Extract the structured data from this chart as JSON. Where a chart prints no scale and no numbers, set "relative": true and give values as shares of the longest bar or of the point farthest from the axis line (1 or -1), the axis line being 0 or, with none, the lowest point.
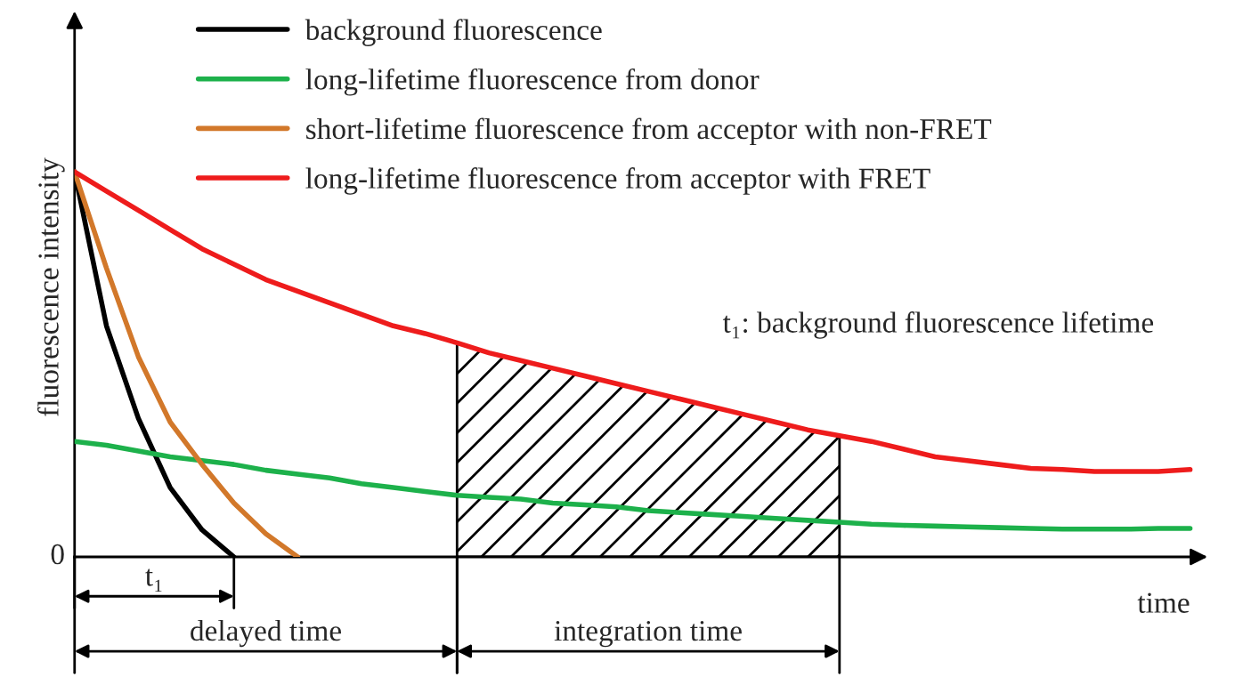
{
  "chart_data": {
    "type": "line",
    "relative": true,
    "xlabel": "time",
    "ylabel": "fluorescence intensity",
    "legend": "top left",
    "line_style": "solid",
    "marker": "none",
    "categories": [
      null,
      null,
      null,
      null,
      null,
      null,
      null,
      null,
      null,
      null,
      null,
      null,
      null,
      null,
      null,
      null,
      null,
      null,
      null,
      null,
      null,
      null,
      null,
      null,
      null,
      null,
      null,
      null,
      null,
      null,
      null,
      null,
      null,
      null,
      null,
      null
    ],
    "series": [
      {
        "name": "background fluorescence",
        "color": "#000000",
        "values": [
          1.0,
          0.6,
          0.36,
          0.18,
          0.07,
          0,
          null,
          null,
          null,
          null,
          null,
          null,
          null,
          null,
          null,
          null,
          null,
          null,
          null,
          null,
          null,
          null,
          null,
          null,
          null,
          null,
          null,
          null,
          null,
          null,
          null,
          null,
          null,
          null,
          null,
          null
        ]
      },
      {
        "name": "long-lifetime fluorescence from donor",
        "color": "#1db14b",
        "values": [
          0.3,
          0.29,
          0.275,
          0.26,
          0.25,
          0.24,
          0.225,
          0.215,
          0.205,
          0.19,
          0.18,
          0.17,
          0.16,
          0.155,
          0.15,
          0.14,
          0.135,
          0.13,
          0.12,
          0.115,
          0.11,
          0.105,
          0.1,
          0.095,
          0.09,
          0.085,
          0.082,
          0.08,
          0.078,
          0.076,
          0.074,
          0.072,
          0.072,
          0.072,
          0.074,
          0.074
        ]
      },
      {
        "name": "short-lifetime fluorescence from acceptor with non-FRET",
        "color": "#d2782a",
        "values": [
          1.0,
          0.75,
          0.52,
          0.35,
          0.24,
          0.14,
          0.06,
          0,
          null,
          null,
          null,
          null,
          null,
          null,
          null,
          null,
          null,
          null,
          null,
          null,
          null,
          null,
          null,
          null,
          null,
          null,
          null,
          null,
          null,
          null,
          null,
          null,
          null,
          null,
          null,
          null
        ]
      },
      {
        "name": "long-lifetime fluorescence from acceptor with FRET",
        "color": "#ee1c1c",
        "values": [
          1.0,
          0.95,
          0.9,
          0.85,
          0.8,
          0.76,
          0.72,
          0.69,
          0.66,
          0.63,
          0.6,
          0.58,
          0.556,
          0.53,
          0.51,
          0.49,
          0.47,
          0.45,
          0.43,
          0.41,
          0.39,
          0.37,
          0.35,
          0.33,
          0.315,
          0.3,
          0.28,
          0.26,
          0.25,
          0.24,
          0.23,
          0.227,
          0.222,
          0.222,
          0.222,
          0.227
        ]
      },
      {
        "type": "area",
        "color": "#000000",
        "values": [
          null,
          null,
          null,
          null,
          null,
          null,
          null,
          null,
          null,
          null,
          null,
          null,
          0.556,
          0.53,
          0.51,
          0.49,
          0.47,
          0.45,
          0.43,
          0.41,
          0.39,
          0.37,
          0.35,
          0.33,
          0.315,
          null,
          null,
          null,
          null,
          null,
          null,
          null,
          null,
          null,
          null,
          null
        ]
      }
    ],
    "annotations": [
      "0",
      "t₁: background fluorescence lifetime",
      "t₁",
      "delayed time",
      "integration time"
    ]
  }
}
